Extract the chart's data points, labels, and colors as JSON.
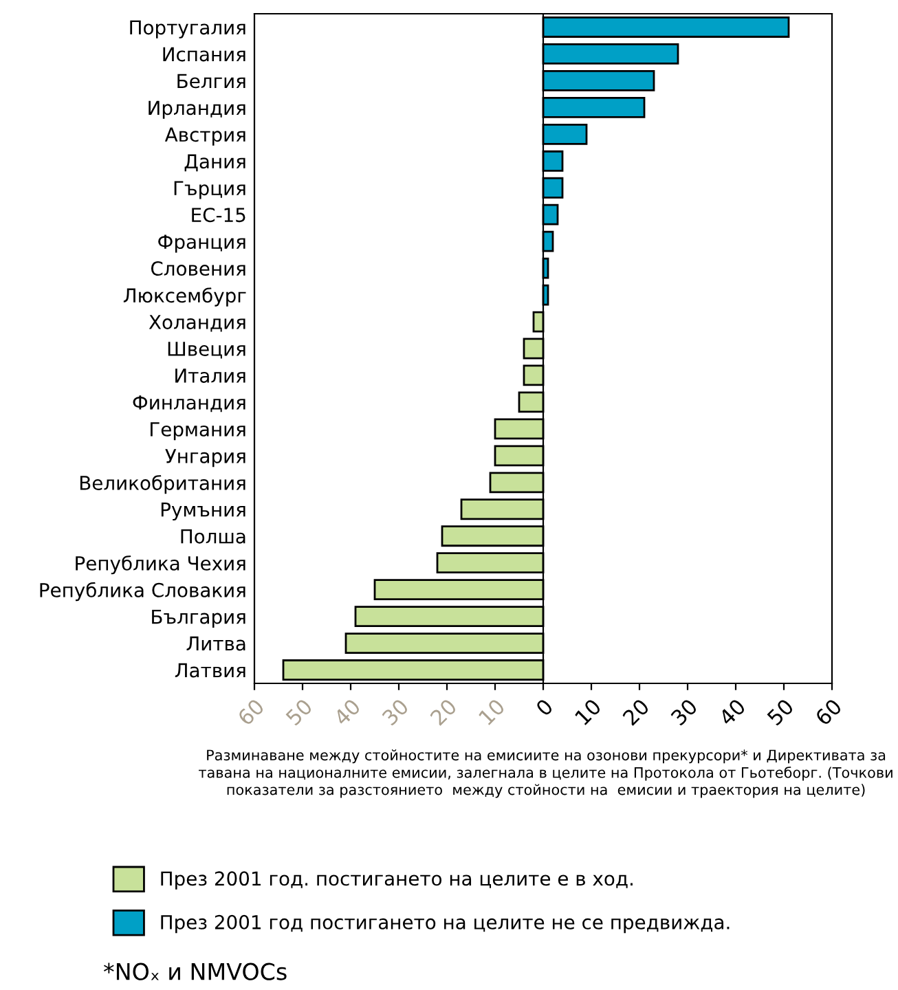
{
  "chart_data": {
    "type": "bar",
    "orientation": "horizontal",
    "categories": [
      "Португалия",
      "Испания",
      "Белгия",
      "Ирландия",
      "Австрия",
      "Дания",
      "Гърция",
      "ЕС-15",
      "Франция",
      "Словения",
      "Люксембург",
      "Холандия",
      "Швеция",
      "Италия",
      "Финландия",
      "Германия",
      "Унгария",
      "Великобритания",
      "Румъния",
      "Полша",
      "Република Чехия",
      "Република Словакия",
      "България",
      "Литва",
      "Латвия"
    ],
    "series": [
      {
        "name": "През 2001 год. постигането на целите е в ход.",
        "color": "#c8e19a",
        "values": [
          null,
          null,
          null,
          null,
          null,
          null,
          null,
          null,
          null,
          null,
          null,
          -2,
          -4,
          -4,
          -5,
          -10,
          -10,
          -11,
          -17,
          -21,
          -22,
          -35,
          -39,
          -41,
          -54
        ]
      },
      {
        "name": "През 2001 год постигането на целите не се предвижда.",
        "color": "#00a0c6",
        "values": [
          51,
          28,
          23,
          21,
          9,
          4,
          4,
          3,
          2,
          1,
          1,
          null,
          null,
          null,
          null,
          null,
          null,
          null,
          null,
          null,
          null,
          null,
          null,
          null,
          null
        ]
      }
    ],
    "xlim": [
      -60,
      60
    ],
    "xticks": [
      {
        "value": -60,
        "label": "60"
      },
      {
        "value": -50,
        "label": "50"
      },
      {
        "value": -40,
        "label": "40"
      },
      {
        "value": -30,
        "label": "30"
      },
      {
        "value": -20,
        "label": "20"
      },
      {
        "value": -10,
        "label": "10"
      },
      0,
      10,
      20,
      30,
      40,
      50,
      60
    ],
    "xlabel": "Разминаване между стойностите на емисиите на озонови прекурсори* и Директивата за тавана на националните емисии, залегнала в целите на Протокола от Гьотеборг. (Точкови показатели за разстоянието  между стойности на  емисии и траектория на целите)",
    "annotations": [
      "*NOₓ и NMVOCs"
    ],
    "ref_lines": [
      {
        "axis": "x",
        "value": 0,
        "color": "#000000"
      }
    ],
    "legend": "bottom"
  }
}
